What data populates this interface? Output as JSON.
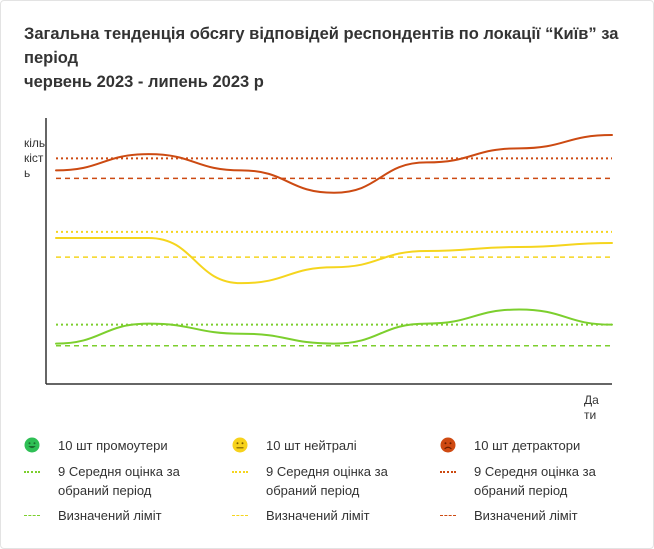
{
  "title_line1": "Загальна тенденція обсягу відповідей  респондентів по локації “Київ” за період",
  "title_line2": "червень 2023 - липень 2023 р",
  "ylabel": "кількість",
  "xlabel": "Дати",
  "colors": {
    "promoters": "#7ccf2e",
    "neutral": "#f5d51e",
    "detractors": "#cc4a12"
  },
  "legend": {
    "promoters_count": "10 шт промоутери",
    "neutral_count": "10 шт нейтралі",
    "detractors_count": "10 шт детрактори",
    "promoters_avg": "9 Середня оцінка за обраний період",
    "neutral_avg": "9 Середня оцінка за обраний період",
    "detractors_avg": "9 Середня оцінка за обраний період",
    "promoters_limit": "Визначений ліміт",
    "neutral_limit": "Визначений ліміт",
    "detractors_limit": "Визначений ліміт",
    "promoters_icon": "smiling-face-icon",
    "neutral_icon": "neutral-face-icon",
    "detractors_icon": "sad-face-icon"
  },
  "chart_data": {
    "type": "line",
    "title": "Загальна тенденція обсягу відповідей  респондентів по локації “Київ” за період червень 2023 - липень 2023 р",
    "xlabel": "Дати",
    "ylabel": "кількість",
    "x": [
      0,
      1,
      2,
      3,
      4,
      5,
      6
    ],
    "ylim": [
      0,
      100
    ],
    "grid": false,
    "series": [
      {
        "key": "detractors",
        "values": [
          80.3,
          86.4,
          80.3,
          71.9,
          83.3,
          88.6,
          93.6
        ],
        "avg": 84.8,
        "limit": 77.3
      },
      {
        "key": "neutral",
        "values": [
          54.9,
          54.9,
          37.9,
          43.9,
          50.0,
          51.5,
          53.0
        ],
        "avg": 57.2,
        "limit": 47.7
      },
      {
        "key": "promoters",
        "values": [
          15.2,
          22.7,
          18.9,
          15.2,
          22.7,
          28.0,
          22.3
        ],
        "avg": 22.3,
        "limit": 14.4
      }
    ]
  }
}
